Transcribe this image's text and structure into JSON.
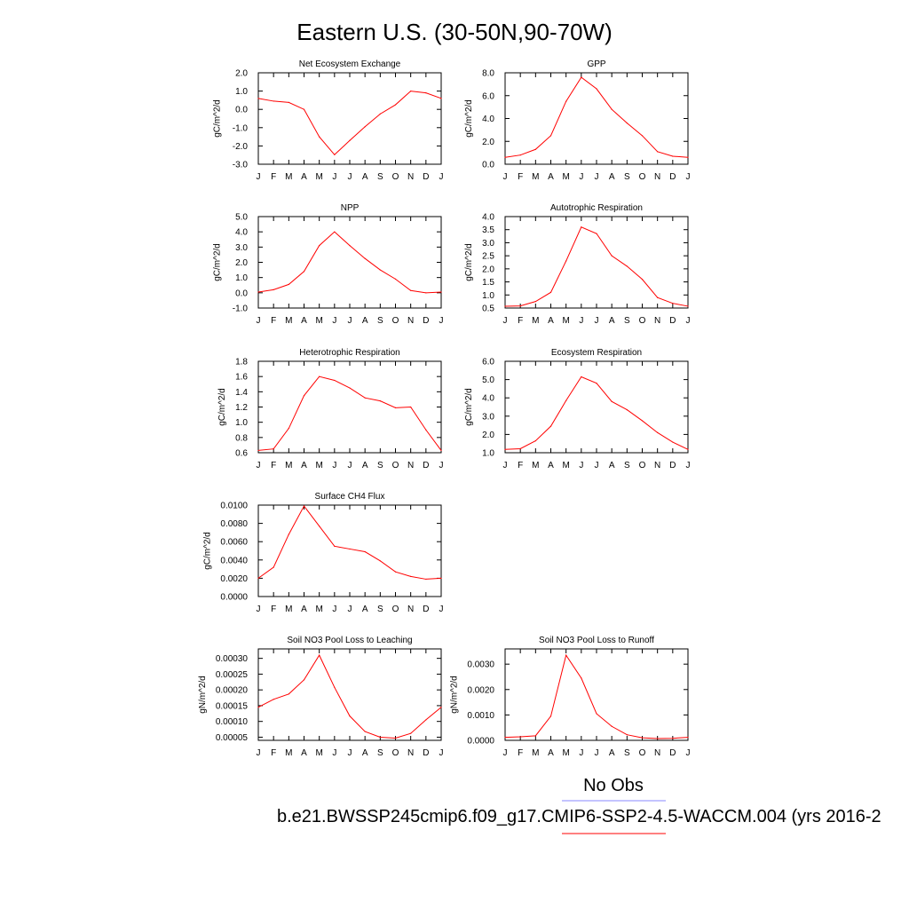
{
  "figure": {
    "title": "Eastern U.S. (30-50N,90-70W)",
    "legend": {
      "entries": [
        {
          "label": "No Obs",
          "color": "#8888ff"
        },
        {
          "label": "b.e21.BWSSP245cmip6.f09_g17.CMIP6-SSP2-4.5-WACCM.004 (yrs 2016-2",
          "color": "#ff0000"
        }
      ]
    }
  },
  "chart_data": [
    {
      "type": "line",
      "title": "Net Ecosystem Exchange",
      "ylabel": "gC/m^2/d",
      "categories": [
        "J",
        "F",
        "M",
        "A",
        "M",
        "J",
        "J",
        "A",
        "S",
        "O",
        "N",
        "D",
        "J"
      ],
      "ylim": [
        -3.0,
        2.0
      ],
      "yticks": [
        {
          "v": -3.0,
          "label": "-3.0"
        },
        {
          "v": -2.0,
          "label": "-2.0"
        },
        {
          "v": -1.0,
          "label": "-1.0"
        },
        {
          "v": 0.0,
          "label": "0.0"
        },
        {
          "v": 1.0,
          "label": "1.0"
        },
        {
          "v": 2.0,
          "label": "2.0"
        }
      ],
      "series": [
        {
          "color": "#ff0000",
          "values": [
            0.6,
            0.45,
            0.38,
            0.0,
            -1.5,
            -2.48,
            -1.7,
            -0.95,
            -0.25,
            0.25,
            1.0,
            0.9,
            0.6
          ]
        }
      ]
    },
    {
      "type": "line",
      "title": "GPP",
      "ylabel": "gC/m^2/d",
      "categories": [
        "J",
        "F",
        "M",
        "A",
        "M",
        "J",
        "J",
        "A",
        "S",
        "O",
        "N",
        "D",
        "J"
      ],
      "ylim": [
        0.0,
        8.0
      ],
      "yticks": [
        {
          "v": 0.0,
          "label": "0.0"
        },
        {
          "v": 2.0,
          "label": "2.0"
        },
        {
          "v": 4.0,
          "label": "4.0"
        },
        {
          "v": 6.0,
          "label": "6.0"
        },
        {
          "v": 8.0,
          "label": "8.0"
        }
      ],
      "series": [
        {
          "color": "#ff0000",
          "values": [
            0.6,
            0.8,
            1.3,
            2.5,
            5.5,
            7.6,
            6.6,
            4.8,
            3.6,
            2.5,
            1.1,
            0.7,
            0.6
          ]
        }
      ]
    },
    {
      "type": "line",
      "title": "NPP",
      "ylabel": "gC/m^2/d",
      "categories": [
        "J",
        "F",
        "M",
        "A",
        "M",
        "J",
        "J",
        "A",
        "S",
        "O",
        "N",
        "D",
        "J"
      ],
      "ylim": [
        -1.0,
        5.0
      ],
      "yticks": [
        {
          "v": -1.0,
          "label": "-1.0"
        },
        {
          "v": 0.0,
          "label": "0.0"
        },
        {
          "v": 1.0,
          "label": "1.0"
        },
        {
          "v": 2.0,
          "label": "2.0"
        },
        {
          "v": 3.0,
          "label": "3.0"
        },
        {
          "v": 4.0,
          "label": "4.0"
        },
        {
          "v": 5.0,
          "label": "5.0"
        }
      ],
      "series": [
        {
          "color": "#ff0000",
          "values": [
            0.05,
            0.2,
            0.55,
            1.4,
            3.1,
            4.0,
            3.1,
            2.25,
            1.5,
            0.9,
            0.15,
            0.0,
            0.05
          ]
        }
      ]
    },
    {
      "type": "line",
      "title": "Autotrophic Respiration",
      "ylabel": "gC/m^2/d",
      "categories": [
        "J",
        "F",
        "M",
        "A",
        "M",
        "J",
        "J",
        "A",
        "S",
        "O",
        "N",
        "D",
        "J"
      ],
      "ylim": [
        0.5,
        4.0
      ],
      "yticks": [
        {
          "v": 0.5,
          "label": "0.5"
        },
        {
          "v": 1.0,
          "label": "1.0"
        },
        {
          "v": 1.5,
          "label": "1.5"
        },
        {
          "v": 2.0,
          "label": "2.0"
        },
        {
          "v": 2.5,
          "label": "2.5"
        },
        {
          "v": 3.0,
          "label": "3.0"
        },
        {
          "v": 3.5,
          "label": "3.5"
        },
        {
          "v": 4.0,
          "label": "4.0"
        }
      ],
      "series": [
        {
          "color": "#ff0000",
          "values": [
            0.57,
            0.58,
            0.75,
            1.1,
            2.3,
            3.6,
            3.35,
            2.5,
            2.1,
            1.6,
            0.9,
            0.68,
            0.57
          ]
        }
      ]
    },
    {
      "type": "line",
      "title": "Heterotrophic Respiration",
      "ylabel": "gC/m^2/d",
      "categories": [
        "J",
        "F",
        "M",
        "A",
        "M",
        "J",
        "J",
        "A",
        "S",
        "O",
        "N",
        "D",
        "J"
      ],
      "ylim": [
        0.6,
        1.8
      ],
      "yticks": [
        {
          "v": 0.6,
          "label": "0.6"
        },
        {
          "v": 0.8,
          "label": "0.8"
        },
        {
          "v": 1.0,
          "label": "1.0"
        },
        {
          "v": 1.2,
          "label": "1.2"
        },
        {
          "v": 1.4,
          "label": "1.4"
        },
        {
          "v": 1.6,
          "label": "1.6"
        },
        {
          "v": 1.8,
          "label": "1.8"
        }
      ],
      "series": [
        {
          "color": "#ff0000",
          "values": [
            0.63,
            0.65,
            0.92,
            1.35,
            1.6,
            1.55,
            1.45,
            1.32,
            1.28,
            1.19,
            1.2,
            0.9,
            0.63
          ]
        }
      ]
    },
    {
      "type": "line",
      "title": "Ecosystem Respiration",
      "ylabel": "gC/m^2/d",
      "categories": [
        "J",
        "F",
        "M",
        "A",
        "M",
        "J",
        "J",
        "A",
        "S",
        "O",
        "N",
        "D",
        "J"
      ],
      "ylim": [
        1.0,
        6.0
      ],
      "yticks": [
        {
          "v": 1.0,
          "label": "1.0"
        },
        {
          "v": 2.0,
          "label": "2.0"
        },
        {
          "v": 3.0,
          "label": "3.0"
        },
        {
          "v": 4.0,
          "label": "4.0"
        },
        {
          "v": 5.0,
          "label": "5.0"
        },
        {
          "v": 6.0,
          "label": "6.0"
        }
      ],
      "series": [
        {
          "color": "#ff0000",
          "values": [
            1.18,
            1.22,
            1.65,
            2.45,
            3.85,
            5.15,
            4.8,
            3.8,
            3.35,
            2.75,
            2.1,
            1.58,
            1.18
          ]
        }
      ]
    },
    {
      "type": "line",
      "title": "Surface CH4 Flux",
      "ylabel": "gC/m^2/d",
      "categories": [
        "J",
        "F",
        "M",
        "A",
        "M",
        "J",
        "J",
        "A",
        "S",
        "O",
        "N",
        "D",
        "J"
      ],
      "ylim": [
        0.0,
        0.01
      ],
      "yticks": [
        {
          "v": 0.0,
          "label": "0.0000"
        },
        {
          "v": 0.002,
          "label": "0.0020"
        },
        {
          "v": 0.004,
          "label": "0.0040"
        },
        {
          "v": 0.006,
          "label": "0.0060"
        },
        {
          "v": 0.008,
          "label": "0.0080"
        },
        {
          "v": 0.01,
          "label": "0.0100"
        }
      ],
      "series": [
        {
          "color": "#ff0000",
          "values": [
            0.002,
            0.0032,
            0.0068,
            0.0099,
            0.0077,
            0.0055,
            0.0052,
            0.0049,
            0.0039,
            0.0027,
            0.0022,
            0.0019,
            0.002
          ]
        }
      ]
    },
    {
      "type": "line",
      "title": "Soil NO3 Pool Loss to Leaching",
      "ylabel": "gN/m^2/d",
      "categories": [
        "J",
        "F",
        "M",
        "A",
        "M",
        "J",
        "J",
        "A",
        "S",
        "O",
        "N",
        "D",
        "J"
      ],
      "ylim": [
        4e-05,
        0.00033
      ],
      "yticks": [
        {
          "v": 5e-05,
          "label": "0.00005"
        },
        {
          "v": 0.0001,
          "label": "0.00010"
        },
        {
          "v": 0.00015,
          "label": "0.00015"
        },
        {
          "v": 0.0002,
          "label": "0.00020"
        },
        {
          "v": 0.00025,
          "label": "0.00025"
        },
        {
          "v": 0.0003,
          "label": "0.00030"
        }
      ],
      "series": [
        {
          "color": "#ff0000",
          "values": [
            0.000145,
            0.00017,
            0.000187,
            0.000232,
            0.00031,
            0.000208,
            0.000117,
            6.8e-05,
            5e-05,
            4.7e-05,
            6.2e-05,
            0.000105,
            0.000145
          ]
        }
      ]
    },
    {
      "type": "line",
      "title": "Soil NO3 Pool Loss to Runoff",
      "ylabel": "gN/m^2/d",
      "categories": [
        "J",
        "F",
        "M",
        "A",
        "M",
        "J",
        "J",
        "A",
        "S",
        "O",
        "N",
        "D",
        "J"
      ],
      "ylim": [
        0.0,
        0.0036
      ],
      "yticks": [
        {
          "v": 0.0,
          "label": "0.0000"
        },
        {
          "v": 0.001,
          "label": "0.0010"
        },
        {
          "v": 0.002,
          "label": "0.0020"
        },
        {
          "v": 0.003,
          "label": "0.0030"
        }
      ],
      "series": [
        {
          "color": "#ff0000",
          "values": [
            0.00012,
            0.00014,
            0.00018,
            0.00095,
            0.00335,
            0.00245,
            0.00105,
            0.00055,
            0.00022,
            0.0001,
            7e-05,
            8e-05,
            0.00012
          ]
        }
      ]
    }
  ]
}
